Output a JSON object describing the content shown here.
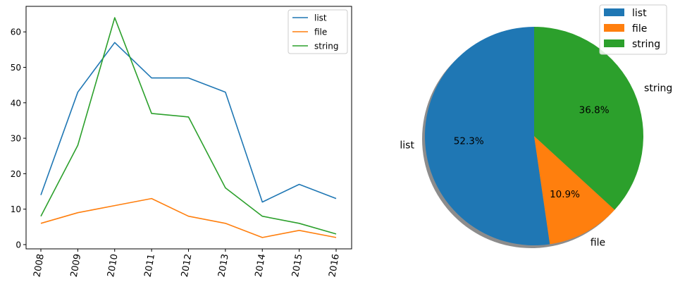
{
  "chart_data": [
    {
      "type": "line",
      "x": [
        2008,
        2009,
        2010,
        2011,
        2012,
        2013,
        2014,
        2015,
        2016
      ],
      "xticks": [
        "2008",
        "2009",
        "2010",
        "2011",
        "2012",
        "2013",
        "2014",
        "2015",
        "2016"
      ],
      "ylim": [
        -1.2,
        67.2
      ],
      "yticks": [
        "0",
        "10",
        "20",
        "30",
        "40",
        "50",
        "60"
      ],
      "grid": false,
      "legend_position": "top-right",
      "series": [
        {
          "name": "list",
          "color": "#1f77b4",
          "values": [
            14,
            43,
            57,
            47,
            47,
            43,
            12,
            17,
            13
          ]
        },
        {
          "name": "file",
          "color": "#ff7f0e",
          "values": [
            6,
            9,
            11,
            13,
            8,
            6,
            2,
            4,
            2
          ]
        },
        {
          "name": "string",
          "color": "#2ca02c",
          "values": [
            8,
            28,
            64,
            37,
            36,
            16,
            8,
            6,
            3
          ]
        }
      ]
    },
    {
      "type": "pie",
      "labels": [
        "list",
        "file",
        "string"
      ],
      "values": [
        52.3,
        10.9,
        36.8
      ],
      "percent_labels": [
        "52.3%",
        "10.9%",
        "36.8%"
      ],
      "colors": [
        "#1f77b4",
        "#ff7f0e",
        "#2ca02c"
      ],
      "shadow": true,
      "legend_position": "top-right"
    }
  ]
}
